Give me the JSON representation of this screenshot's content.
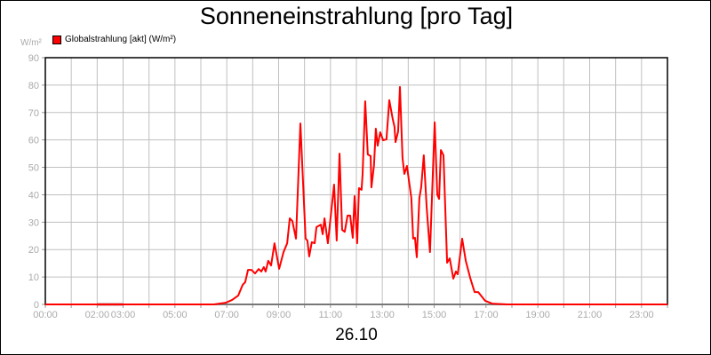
{
  "chart_data": {
    "type": "line",
    "title": "Sonneneinstrahlung [pro Tag]",
    "ylabel": "W/m²",
    "xlabel": "26.10",
    "ylim": [
      0,
      90
    ],
    "xlim": [
      0,
      24
    ],
    "yticks": [
      0,
      10,
      20,
      30,
      40,
      50,
      60,
      70,
      80,
      90
    ],
    "xticks": [
      {
        "x": 0,
        "label": "00:00"
      },
      {
        "x": 2,
        "label": "02:00"
      },
      {
        "x": 3,
        "label": "03:00"
      },
      {
        "x": 5,
        "label": "05:00"
      },
      {
        "x": 7,
        "label": "07:00"
      },
      {
        "x": 9,
        "label": "09:00"
      },
      {
        "x": 11,
        "label": "11:00"
      },
      {
        "x": 13,
        "label": "13:00"
      },
      {
        "x": 15,
        "label": "15:00"
      },
      {
        "x": 17,
        "label": "17:00"
      },
      {
        "x": 19,
        "label": "19:00"
      },
      {
        "x": 21,
        "label": "21:00"
      },
      {
        "x": 23,
        "label": "23:00"
      }
    ],
    "grid": true,
    "legend_position": "top-left",
    "series": [
      {
        "name": "Globalstrahlung [akt] (W/m²)",
        "color": "#ff0000",
        "points": [
          [
            0,
            0
          ],
          [
            6.5,
            0
          ],
          [
            6.96,
            0.6
          ],
          [
            7.2,
            1.6
          ],
          [
            7.44,
            3.2
          ],
          [
            7.61,
            7.1
          ],
          [
            7.71,
            8.1
          ],
          [
            7.82,
            12.6
          ],
          [
            7.95,
            12.6
          ],
          [
            8.09,
            11.3
          ],
          [
            8.23,
            12.9
          ],
          [
            8.33,
            12
          ],
          [
            8.43,
            13.6
          ],
          [
            8.5,
            12
          ],
          [
            8.6,
            15.9
          ],
          [
            8.71,
            14.2
          ],
          [
            8.84,
            22.3
          ],
          [
            9.02,
            13
          ],
          [
            9.19,
            19.1
          ],
          [
            9.33,
            22.3
          ],
          [
            9.43,
            31.4
          ],
          [
            9.53,
            30.4
          ],
          [
            9.67,
            24
          ],
          [
            9.84,
            66
          ],
          [
            10.04,
            24
          ],
          [
            10.11,
            23.3
          ],
          [
            10.18,
            17.5
          ],
          [
            10.28,
            22.7
          ],
          [
            10.39,
            22.3
          ],
          [
            10.46,
            28.2
          ],
          [
            10.63,
            29.1
          ],
          [
            10.7,
            25.6
          ],
          [
            10.77,
            31.4
          ],
          [
            10.9,
            22.3
          ],
          [
            11.14,
            43.7
          ],
          [
            11.24,
            23.3
          ],
          [
            11.35,
            55
          ],
          [
            11.45,
            27.2
          ],
          [
            11.55,
            26.5
          ],
          [
            11.66,
            32.4
          ],
          [
            11.76,
            32.4
          ],
          [
            11.86,
            24.3
          ],
          [
            11.93,
            39.5
          ],
          [
            12.03,
            22.3
          ],
          [
            12.1,
            42.4
          ],
          [
            12.2,
            41.8
          ],
          [
            12.24,
            47.6
          ],
          [
            12.34,
            74.1
          ],
          [
            12.44,
            54.7
          ],
          [
            12.55,
            54.1
          ],
          [
            12.58,
            42.7
          ],
          [
            12.68,
            50.8
          ],
          [
            12.75,
            64.1
          ],
          [
            12.82,
            57.9
          ],
          [
            12.92,
            62.8
          ],
          [
            13.03,
            59.9
          ],
          [
            13.16,
            60.2
          ],
          [
            13.27,
            74.5
          ],
          [
            13.4,
            67.7
          ],
          [
            13.47,
            64.8
          ],
          [
            13.51,
            59.2
          ],
          [
            13.61,
            63.1
          ],
          [
            13.68,
            79.3
          ],
          [
            13.78,
            53.4
          ],
          [
            13.85,
            47.6
          ],
          [
            13.95,
            50.5
          ],
          [
            14.12,
            38.8
          ],
          [
            14.19,
            24
          ],
          [
            14.26,
            24.3
          ],
          [
            14.33,
            17.2
          ],
          [
            14.43,
            38.8
          ],
          [
            14.5,
            42.7
          ],
          [
            14.6,
            54.4
          ],
          [
            14.71,
            35.6
          ],
          [
            14.84,
            19.1
          ],
          [
            15.02,
            66.4
          ],
          [
            15.12,
            40.1
          ],
          [
            15.19,
            38.5
          ],
          [
            15.26,
            56.3
          ],
          [
            15.36,
            54.4
          ],
          [
            15.5,
            15.2
          ],
          [
            15.6,
            16.8
          ],
          [
            15.74,
            9.4
          ],
          [
            15.84,
            12
          ],
          [
            15.91,
            11
          ],
          [
            16.08,
            24
          ],
          [
            16.22,
            15.9
          ],
          [
            16.39,
            9.7
          ],
          [
            16.56,
            4.5
          ],
          [
            16.7,
            4.5
          ],
          [
            16.97,
            1.3
          ],
          [
            17.24,
            0.3
          ],
          [
            17.83,
            0
          ],
          [
            24,
            0
          ]
        ]
      }
    ],
    "missing_data_marker": {
      "from": 2,
      "to": 3,
      "color": "#800000"
    }
  }
}
